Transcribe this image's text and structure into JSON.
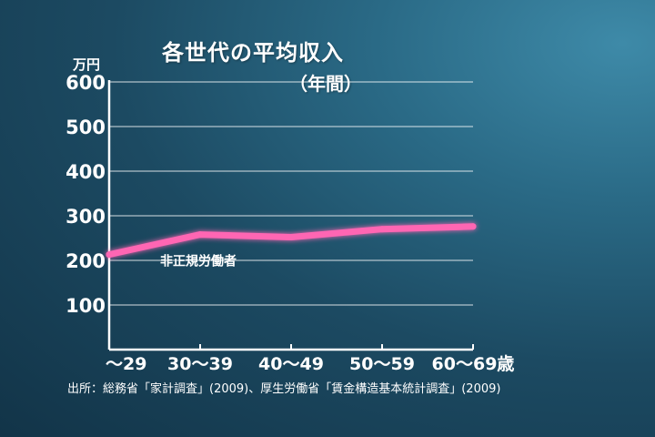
{
  "chart_data": {
    "type": "line",
    "title": "各世代の平均収入",
    "subtitle": "（年間）",
    "unit": "万円",
    "categories": [
      "〜29",
      "30〜39",
      "40〜49",
      "50〜59",
      "60〜69歳"
    ],
    "series": [
      {
        "name": "非正規労働者",
        "values": [
          213,
          258,
          252,
          270,
          276
        ]
      }
    ],
    "ylim": [
      0,
      600
    ],
    "yticks": [
      100,
      200,
      300,
      400,
      500,
      600
    ],
    "grid": true,
    "line_color": "#ff66b3"
  },
  "source": "出所：総務省「家計調査」(2009)、厚生労働省「賃金構造基本統計調査」(2009)"
}
